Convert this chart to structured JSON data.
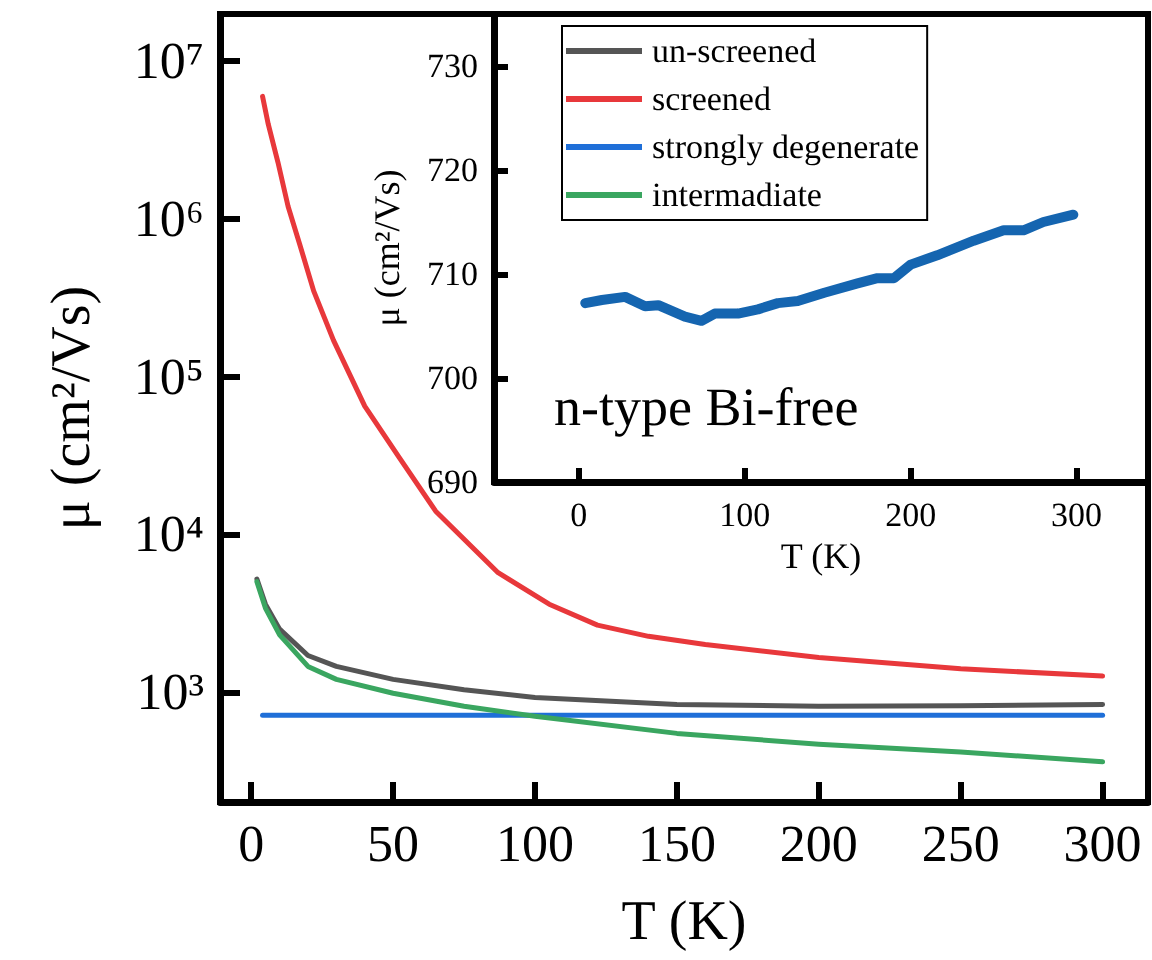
{
  "chart_data": [
    {
      "type": "line",
      "xlabel": "T (K)",
      "ylabel": "μ (cm²/Vs)",
      "log": "y",
      "xlim": [
        -11,
        316
      ],
      "xticks": [
        0,
        50,
        100,
        150,
        200,
        250,
        300
      ],
      "ylim": [
        200,
        20000000
      ],
      "yticks": [
        {
          "value": 1000,
          "label": "10³"
        },
        {
          "value": 10000,
          "label": "10⁴"
        },
        {
          "value": 100000,
          "label": "10⁵"
        },
        {
          "value": 1000000,
          "label": "10⁶"
        },
        {
          "value": 10000000,
          "label": "10⁷"
        }
      ],
      "grid": false,
      "legend": "top",
      "marker": "none",
      "line_style": "solid",
      "series": [
        {
          "name": "un-screened",
          "color": "#555555",
          "x": [
            2,
            5,
            10,
            20,
            30,
            50,
            75,
            100,
            150,
            200,
            250,
            300
          ],
          "values": [
            5200,
            3600,
            2500,
            1700,
            1450,
            1200,
            1030,
            920,
            830,
            810,
            815,
            830
          ]
        },
        {
          "name": "screened",
          "color": "#e8383b",
          "x": [
            4,
            6,
            9.4,
            13,
            17,
            22,
            29,
            40,
            52,
            65,
            87,
            105,
            122,
            140,
            160,
            200,
            250,
            300
          ],
          "values": [
            6000000,
            4000000,
            2300000,
            1200000,
            700000,
            350000,
            170000,
            65000,
            31000,
            14000,
            5700,
            3600,
            2650,
            2250,
            2000,
            1650,
            1400,
            1260
          ]
        },
        {
          "name": "strongly degenerate",
          "color": "#1f6fd8",
          "x": [
            4,
            300
          ],
          "values": [
            710,
            710
          ]
        },
        {
          "name": "intermadiate",
          "color": "#3aa660",
          "x": [
            2,
            5,
            10,
            20,
            30,
            50,
            75,
            100,
            150,
            200,
            250,
            300
          ],
          "values": [
            5000,
            3400,
            2300,
            1450,
            1200,
            980,
            810,
            700,
            545,
            465,
            415,
            360
          ]
        }
      ]
    },
    {
      "type": "line",
      "xlabel": "T (K)",
      "ylabel": "μ (cm²/Vs)",
      "xlim": [
        -51,
        343
      ],
      "xticks": [
        0,
        100,
        200,
        300
      ],
      "ylim": [
        690,
        735
      ],
      "yticks": [
        690,
        700,
        710,
        720,
        730
      ],
      "grid": false,
      "legend": false,
      "marker": "none",
      "line_style": "solid",
      "annotations": [
        "n-type Bi-free"
      ],
      "series": [
        {
          "color": "#1565b0",
          "x": [
            4,
            14,
            28,
            40,
            48,
            64,
            74,
            82,
            96,
            108,
            120,
            132,
            148,
            168,
            180,
            190,
            200,
            216,
            238,
            256,
            268,
            280,
            298
          ],
          "values": [
            707.2,
            707.5,
            707.8,
            706.9,
            707.0,
            705.9,
            705.5,
            706.2,
            706.2,
            706.6,
            707.2,
            707.4,
            708.2,
            709.1,
            709.6,
            709.6,
            710.9,
            711.8,
            713.2,
            714.2,
            714.2,
            715.0,
            715.7
          ]
        }
      ]
    }
  ]
}
